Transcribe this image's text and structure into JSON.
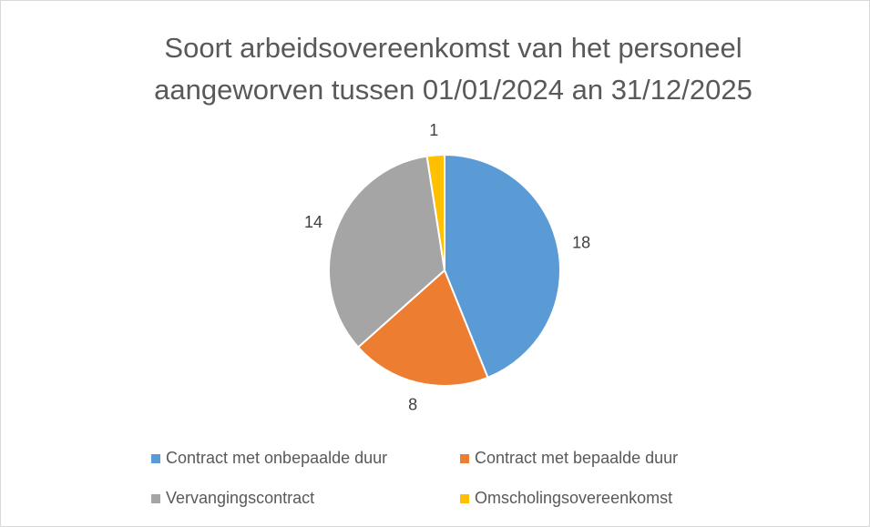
{
  "chart_data": {
    "type": "pie",
    "title": "Soort arbeidsovereenkomst van het personeel aangeworven tussen 01/01/2024 an 31/12/2025",
    "categories": [
      "Contract met onbepaalde duur",
      "Contract met bepaalde duur",
      "Vervangingscontract",
      "Omscholingsovereenkomst"
    ],
    "values": [
      18,
      8,
      14,
      1
    ],
    "colors": [
      "#5b9bd5",
      "#ed7d31",
      "#a5a5a5",
      "#ffc000"
    ]
  }
}
